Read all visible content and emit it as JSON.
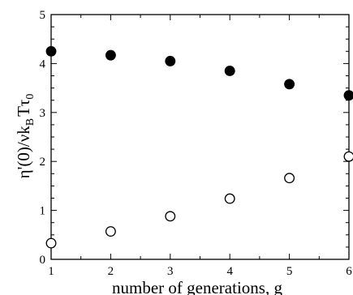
{
  "chart_data": {
    "type": "scatter",
    "xlabel": "number of generations, g",
    "ylabel": {
      "prefix": "η'(0)/νk",
      "sub1": "B",
      "mid": "Tτ",
      "sub2": "0"
    },
    "x": [
      1,
      2,
      3,
      4,
      5,
      6
    ],
    "xlim": [
      1,
      6
    ],
    "ylim": [
      0,
      5
    ],
    "xticks": [
      "1",
      "2",
      "3",
      "4",
      "5",
      "6"
    ],
    "yticks": [
      "0",
      "1",
      "2",
      "3",
      "4",
      "5"
    ],
    "grid": false,
    "legend": "none",
    "series": [
      {
        "marker": "filled-circle",
        "color": "#000000",
        "values": [
          4.25,
          4.17,
          4.05,
          3.85,
          3.58,
          3.35
        ]
      },
      {
        "marker": "open-circle",
        "color": "#000000",
        "values": [
          0.33,
          0.57,
          0.88,
          1.24,
          1.66,
          2.1
        ]
      }
    ]
  }
}
